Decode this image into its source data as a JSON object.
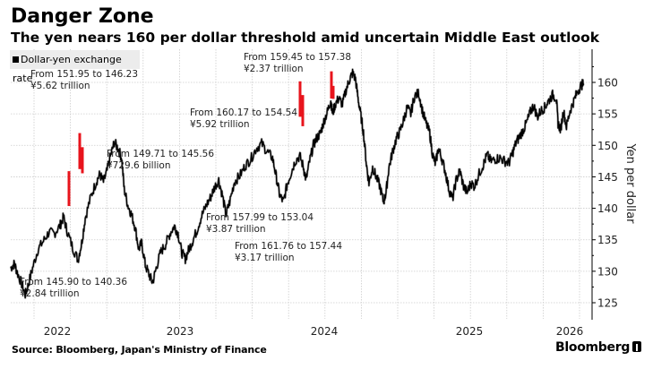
{
  "header": {
    "title": "Danger Zone",
    "subtitle": "The yen nears 160 per dollar threshold amid uncertain Middle East outlook"
  },
  "footer": {
    "source": "Source: Bloomberg, Japan's Ministry of Finance",
    "brand": "Bloomberg"
  },
  "colors": {
    "line": "#000000",
    "intervention": "#e8141c",
    "grid": "#cccccc",
    "legend_bg": "#ececec"
  },
  "chart_data": {
    "type": "line",
    "title": "Danger Zone",
    "subtitle": "The yen nears 160 per dollar threshold amid uncertain Middle East outlook",
    "xlabel": "",
    "ylabel": "Yen per dollar",
    "ylim": [
      123,
      165
    ],
    "yticks": [
      125,
      130,
      135,
      140,
      145,
      150,
      155,
      160
    ],
    "xticks": [
      "2022",
      "2023",
      "2024",
      "2025",
      "2026"
    ],
    "xrange_quarters": [
      0,
      16
    ],
    "grid": true,
    "legend": {
      "position": "top-left",
      "entries": [
        "Dollar-yen exchange rate"
      ]
    },
    "series": [
      {
        "name": "Dollar-yen exchange rate",
        "points": [
          [
            0.0,
            130.5
          ],
          [
            0.1,
            131.2
          ],
          [
            0.18,
            129.8
          ],
          [
            0.3,
            128.0
          ],
          [
            0.4,
            126.3
          ],
          [
            0.48,
            127.8
          ],
          [
            0.6,
            130.5
          ],
          [
            0.75,
            133.5
          ],
          [
            0.9,
            134.8
          ],
          [
            1.05,
            136.2
          ],
          [
            1.2,
            136.0
          ],
          [
            1.35,
            137.2
          ],
          [
            1.45,
            138.6
          ],
          [
            1.55,
            136.4
          ],
          [
            1.7,
            133.8
          ],
          [
            1.85,
            131.8
          ],
          [
            1.95,
            134.5
          ],
          [
            2.05,
            138.5
          ],
          [
            2.2,
            141.8
          ],
          [
            2.35,
            144.2
          ],
          [
            2.45,
            145.4
          ],
          [
            2.55,
            144.2
          ],
          [
            2.65,
            146.0
          ],
          [
            2.75,
            148.5
          ],
          [
            2.85,
            150.5
          ],
          [
            2.95,
            149.5
          ],
          [
            3.05,
            148.0
          ],
          [
            3.12,
            143.0
          ],
          [
            3.22,
            140.5
          ],
          [
            3.32,
            139.0
          ],
          [
            3.42,
            137.0
          ],
          [
            3.52,
            133.5
          ],
          [
            3.6,
            134.5
          ],
          [
            3.7,
            131.0
          ],
          [
            3.8,
            129.5
          ],
          [
            3.9,
            128.2
          ],
          [
            4.0,
            130.5
          ],
          [
            4.12,
            133.0
          ],
          [
            4.25,
            134.2
          ],
          [
            4.38,
            136.0
          ],
          [
            4.5,
            137.2
          ],
          [
            4.6,
            136.0
          ],
          [
            4.7,
            133.0
          ],
          [
            4.8,
            132.0
          ],
          [
            4.9,
            133.5
          ],
          [
            5.0,
            134.8
          ],
          [
            5.12,
            136.5
          ],
          [
            5.25,
            138.8
          ],
          [
            5.38,
            140.5
          ],
          [
            5.5,
            141.8
          ],
          [
            5.6,
            143.3
          ],
          [
            5.72,
            144.5
          ],
          [
            5.82,
            142.0
          ],
          [
            5.92,
            139.0
          ],
          [
            6.02,
            141.0
          ],
          [
            6.15,
            144.2
          ],
          [
            6.3,
            145.2
          ],
          [
            6.45,
            146.8
          ],
          [
            6.6,
            147.8
          ],
          [
            6.75,
            149.5
          ],
          [
            6.9,
            150.3
          ],
          [
            7.05,
            149.0
          ],
          [
            7.2,
            148.0
          ],
          [
            7.3,
            145.0
          ],
          [
            7.4,
            142.0
          ],
          [
            7.5,
            141.0
          ],
          [
            7.6,
            143.8
          ],
          [
            7.7,
            145.5
          ],
          [
            7.82,
            147.5
          ],
          [
            7.95,
            148.3
          ],
          [
            8.05,
            146.5
          ],
          [
            8.12,
            144.5
          ],
          [
            8.22,
            147.5
          ],
          [
            8.32,
            150.0
          ],
          [
            8.42,
            151.2
          ],
          [
            8.52,
            152.0
          ],
          [
            8.62,
            154.0
          ],
          [
            8.72,
            155.5
          ],
          [
            8.8,
            157.2
          ],
          [
            8.85,
            155.0
          ],
          [
            8.92,
            156.5
          ],
          [
            9.02,
            157.5
          ],
          [
            9.12,
            156.5
          ],
          [
            9.22,
            158.8
          ],
          [
            9.32,
            160.5
          ],
          [
            9.4,
            161.5
          ],
          [
            9.48,
            160.5
          ],
          [
            9.55,
            157.5
          ],
          [
            9.62,
            155.0
          ],
          [
            9.7,
            152.0
          ],
          [
            9.78,
            147.0
          ],
          [
            9.85,
            144.0
          ],
          [
            9.95,
            146.5
          ],
          [
            10.05,
            145.0
          ],
          [
            10.15,
            143.5
          ],
          [
            10.25,
            141.0
          ],
          [
            10.32,
            142.5
          ],
          [
            10.4,
            146.5
          ],
          [
            10.5,
            149.0
          ],
          [
            10.6,
            151.0
          ],
          [
            10.7,
            152.2
          ],
          [
            10.8,
            154.0
          ],
          [
            10.9,
            156.0
          ],
          [
            11.0,
            155.0
          ],
          [
            11.1,
            157.8
          ],
          [
            11.22,
            158.3
          ],
          [
            11.32,
            155.5
          ],
          [
            11.42,
            153.5
          ],
          [
            11.52,
            152.0
          ],
          [
            11.6,
            148.5
          ],
          [
            11.68,
            147.0
          ],
          [
            11.76,
            149.5
          ],
          [
            11.85,
            148.0
          ],
          [
            11.95,
            145.8
          ],
          [
            12.05,
            143.0
          ],
          [
            12.15,
            141.5
          ],
          [
            12.25,
            144.5
          ],
          [
            12.35,
            146.0
          ],
          [
            12.45,
            143.5
          ],
          [
            12.55,
            142.5
          ],
          [
            12.65,
            144.0
          ],
          [
            12.75,
            143.5
          ],
          [
            12.88,
            145.5
          ],
          [
            13.0,
            147.0
          ],
          [
            13.1,
            148.5
          ],
          [
            13.2,
            147.5
          ],
          [
            13.32,
            147.8
          ],
          [
            13.45,
            148.0
          ],
          [
            13.58,
            147.5
          ],
          [
            13.7,
            147.2
          ],
          [
            13.8,
            148.8
          ],
          [
            13.9,
            150.5
          ],
          [
            14.0,
            151.5
          ],
          [
            14.1,
            152.5
          ],
          [
            14.2,
            153.8
          ],
          [
            14.3,
            155.5
          ],
          [
            14.38,
            156.3
          ],
          [
            14.48,
            154.5
          ],
          [
            14.58,
            155.5
          ],
          [
            14.68,
            156.0
          ],
          [
            14.78,
            157.0
          ],
          [
            14.9,
            158.0
          ],
          [
            15.0,
            157.5
          ],
          [
            15.05,
            153.5
          ],
          [
            15.12,
            152.5
          ],
          [
            15.2,
            155.5
          ],
          [
            15.28,
            153.0
          ],
          [
            15.38,
            155.5
          ],
          [
            15.48,
            157.0
          ],
          [
            15.58,
            158.5
          ],
          [
            15.68,
            159.5
          ],
          [
            15.75,
            159.8
          ]
        ]
      }
    ],
    "interventions": [
      {
        "x": 1.58,
        "high": 145.9,
        "low": 140.36,
        "label_from": "From 145.90 to 140.36",
        "label_amount": "¥2.84 trillion"
      },
      {
        "x": 1.88,
        "high": 151.95,
        "low": 146.23,
        "label_from": "From 151.95 to 146.23",
        "label_amount": "¥5.62 trillion"
      },
      {
        "x": 1.95,
        "high": 149.71,
        "low": 145.56,
        "label_from": "From 149.71 to 145.56",
        "label_amount": "¥729.6 billion"
      },
      {
        "x": 7.98,
        "high": 160.17,
        "low": 154.54,
        "label_from": "From 160.17 to 154.54",
        "label_amount": "¥5.92 trillion"
      },
      {
        "x": 8.05,
        "high": 157.99,
        "low": 153.04,
        "label_from": "From 157.99 to 153.04",
        "label_amount": "¥3.87 trillion"
      },
      {
        "x": 8.85,
        "high": 161.76,
        "low": 157.44,
        "label_from": "From 161.76 to 157.44",
        "label_amount": "¥3.17 trillion"
      },
      {
        "x": 8.9,
        "high": 159.45,
        "low": 157.38,
        "label_from": "From 159.45 to 157.38",
        "label_amount": "¥2.37 trillion"
      }
    ]
  },
  "legend": {
    "label": "Dollar-yen exchange rate"
  }
}
